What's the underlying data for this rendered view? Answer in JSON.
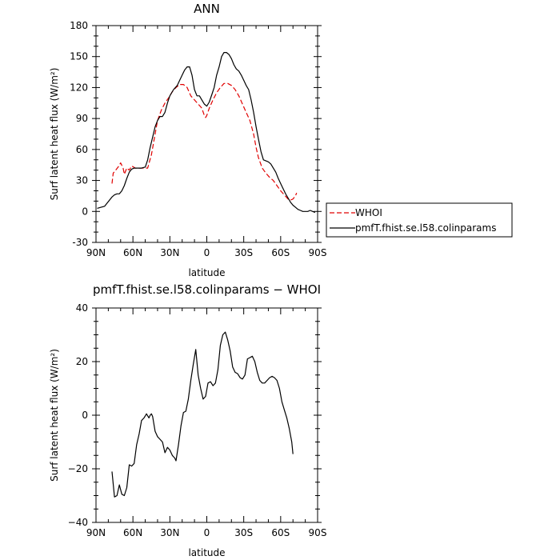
{
  "chart_data": [
    {
      "type": "line",
      "title": "ANN",
      "xlabel": "latitude",
      "ylabel": "Surf latent heat flux (W/m²)",
      "xlim": [
        90,
        -90
      ],
      "ylim": [
        -30,
        180
      ],
      "x_ticks": [
        90,
        60,
        30,
        0,
        -30,
        -60,
        -90
      ],
      "x_tick_labels": [
        "90N",
        "60N",
        "30N",
        "0",
        "30S",
        "60S",
        "90S"
      ],
      "y_ticks": [
        -30,
        0,
        30,
        60,
        90,
        120,
        150,
        180
      ],
      "y_tick_labels": [
        "-30",
        "0",
        "30",
        "60",
        "90",
        "120",
        "150",
        "180"
      ],
      "legend_position": "right",
      "series": [
        {
          "name": "WHOI",
          "color": "#e00000",
          "dash": "dashed",
          "points": [
            [
              77,
              27
            ],
            [
              76,
              37
            ],
            [
              74,
              40
            ],
            [
              72,
              43
            ],
            [
              70,
              47
            ],
            [
              68,
              42
            ],
            [
              67,
              36
            ],
            [
              65,
              42
            ],
            [
              63,
              40
            ],
            [
              61,
              44
            ],
            [
              58,
              42
            ],
            [
              55,
              42
            ],
            [
              52,
              42
            ],
            [
              48,
              42
            ],
            [
              45,
              55
            ],
            [
              42,
              75
            ],
            [
              40,
              88
            ],
            [
              37,
              98
            ],
            [
              34,
              105
            ],
            [
              31,
              110
            ],
            [
              28,
              116
            ],
            [
              25,
              120
            ],
            [
              22,
              123
            ],
            [
              19,
              123
            ],
            [
              16,
              120
            ],
            [
              13,
              112
            ],
            [
              10,
              108
            ],
            [
              7,
              104
            ],
            [
              4,
              100
            ],
            [
              2,
              93
            ],
            [
              1,
              91
            ],
            [
              0,
              93
            ],
            [
              -2,
              100
            ],
            [
              -5,
              108
            ],
            [
              -8,
              115
            ],
            [
              -11,
              120
            ],
            [
              -14,
              124
            ],
            [
              -17,
              124
            ],
            [
              -20,
              122
            ],
            [
              -23,
              118
            ],
            [
              -26,
              112
            ],
            [
              -29,
              104
            ],
            [
              -32,
              96
            ],
            [
              -35,
              88
            ],
            [
              -38,
              75
            ],
            [
              -40,
              62
            ],
            [
              -42,
              52
            ],
            [
              -45,
              42
            ],
            [
              -48,
              37
            ],
            [
              -51,
              33
            ],
            [
              -54,
              30
            ],
            [
              -57,
              25
            ],
            [
              -60,
              20
            ],
            [
              -63,
              16
            ],
            [
              -66,
              12
            ],
            [
              -68,
              11
            ],
            [
              -70,
              12
            ],
            [
              -72,
              15
            ],
            [
              -73,
              18
            ]
          ]
        },
        {
          "name": "pmfT.fhist.se.l58.colinparams",
          "color": "#000000",
          "dash": "solid",
          "points": [
            [
              89,
              3
            ],
            [
              86,
              4
            ],
            [
              83,
              5
            ],
            [
              81,
              8
            ],
            [
              79,
              11
            ],
            [
              77,
              14
            ],
            [
              75,
              16
            ],
            [
              73,
              17
            ],
            [
              71,
              17
            ],
            [
              69,
              20
            ],
            [
              67,
              25
            ],
            [
              65,
              32
            ],
            [
              63,
              38
            ],
            [
              61,
              41
            ],
            [
              59,
              42
            ],
            [
              56,
              42
            ],
            [
              53,
              42
            ],
            [
              50,
              43
            ],
            [
              48,
              50
            ],
            [
              46,
              62
            ],
            [
              44,
              72
            ],
            [
              42,
              82
            ],
            [
              40,
              88
            ],
            [
              38,
              92
            ],
            [
              36,
              92
            ],
            [
              34,
              96
            ],
            [
              32,
              105
            ],
            [
              30,
              112
            ],
            [
              27,
              118
            ],
            [
              24,
              122
            ],
            [
              22,
              127
            ],
            [
              20,
              132
            ],
            [
              18,
              137
            ],
            [
              16,
              140
            ],
            [
              14,
              140
            ],
            [
              12,
              132
            ],
            [
              10,
              118
            ],
            [
              8,
              112
            ],
            [
              6,
              112
            ],
            [
              4,
              108
            ],
            [
              2,
              104
            ],
            [
              1,
              103
            ],
            [
              0,
              102
            ],
            [
              -2,
              106
            ],
            [
              -4,
              113
            ],
            [
              -6,
              120
            ],
            [
              -8,
              132
            ],
            [
              -10,
              140
            ],
            [
              -12,
              150
            ],
            [
              -14,
              154
            ],
            [
              -16,
              154
            ],
            [
              -18,
              152
            ],
            [
              -20,
              148
            ],
            [
              -22,
              142
            ],
            [
              -24,
              138
            ],
            [
              -26,
              136
            ],
            [
              -28,
              132
            ],
            [
              -30,
              127
            ],
            [
              -32,
              122
            ],
            [
              -34,
              118
            ],
            [
              -36,
              108
            ],
            [
              -38,
              96
            ],
            [
              -40,
              82
            ],
            [
              -42,
              70
            ],
            [
              -44,
              58
            ],
            [
              -46,
              50
            ],
            [
              -48,
              49
            ],
            [
              -50,
              48
            ],
            [
              -52,
              46
            ],
            [
              -54,
              42
            ],
            [
              -56,
              38
            ],
            [
              -58,
              32
            ],
            [
              -60,
              27
            ],
            [
              -62,
              22
            ],
            [
              -64,
              17
            ],
            [
              -66,
              13
            ],
            [
              -68,
              9
            ],
            [
              -70,
              6
            ],
            [
              -72,
              4
            ],
            [
              -74,
              2
            ],
            [
              -76,
              1
            ],
            [
              -78,
              0
            ],
            [
              -80,
              0
            ],
            [
              -82,
              0
            ],
            [
              -84,
              1
            ],
            [
              -86,
              0
            ],
            [
              -88,
              -1
            ]
          ]
        }
      ]
    },
    {
      "type": "line",
      "title": "pmfT.fhist.se.l58.colinparams − WHOI",
      "xlabel": "latitude",
      "ylabel": "Surf latent heat flux (W/m²)",
      "xlim": [
        90,
        -90
      ],
      "ylim": [
        -40,
        40
      ],
      "x_ticks": [
        90,
        60,
        30,
        0,
        -30,
        -60,
        -90
      ],
      "x_tick_labels": [
        "90N",
        "60N",
        "30N",
        "0",
        "30S",
        "60S",
        "90S"
      ],
      "y_ticks": [
        -40,
        -20,
        0,
        20,
        40
      ],
      "y_tick_labels": [
        "−40",
        "−20",
        "0",
        "20",
        "40"
      ],
      "series": [
        {
          "color": "#000000",
          "dash": "solid",
          "points": [
            [
              77,
              -21
            ],
            [
              75,
              -30.5
            ],
            [
              73,
              -30
            ],
            [
              71,
              -26
            ],
            [
              69,
              -29.5
            ],
            [
              67,
              -30
            ],
            [
              65,
              -27
            ],
            [
              63,
              -18.5
            ],
            [
              61,
              -19
            ],
            [
              59,
              -18
            ],
            [
              57,
              -11
            ],
            [
              55,
              -7
            ],
            [
              53,
              -2
            ],
            [
              51,
              -1
            ],
            [
              49,
              0.5
            ],
            [
              47,
              -1
            ],
            [
              46,
              0
            ],
            [
              45,
              0.5
            ],
            [
              44,
              -0.5
            ],
            [
              42,
              -6
            ],
            [
              40,
              -8
            ],
            [
              38,
              -9
            ],
            [
              36,
              -10
            ],
            [
              34,
              -14
            ],
            [
              32,
              -12
            ],
            [
              30,
              -13
            ],
            [
              28,
              -15
            ],
            [
              26,
              -16
            ],
            [
              25,
              -17
            ],
            [
              23,
              -11
            ],
            [
              21,
              -4
            ],
            [
              19,
              1
            ],
            [
              17,
              1.5
            ],
            [
              15,
              6
            ],
            [
              13,
              13
            ],
            [
              11,
              19
            ],
            [
              9,
              24.5
            ],
            [
              7,
              15
            ],
            [
              5,
              10
            ],
            [
              3,
              6
            ],
            [
              1,
              7
            ],
            [
              -1,
              12
            ],
            [
              -3,
              12.5
            ],
            [
              -5,
              11
            ],
            [
              -7,
              12
            ],
            [
              -9,
              17
            ],
            [
              -11,
              26
            ],
            [
              -13,
              30
            ],
            [
              -15,
              31
            ],
            [
              -17,
              28
            ],
            [
              -19,
              24
            ],
            [
              -21,
              18
            ],
            [
              -23,
              16
            ],
            [
              -25,
              15.5
            ],
            [
              -27,
              14
            ],
            [
              -29,
              13.5
            ],
            [
              -31,
              15
            ],
            [
              -33,
              21
            ],
            [
              -35,
              21.5
            ],
            [
              -37,
              22
            ],
            [
              -39,
              20
            ],
            [
              -41,
              16
            ],
            [
              -43,
              13
            ],
            [
              -45,
              12
            ],
            [
              -47,
              12
            ],
            [
              -49,
              13
            ],
            [
              -51,
              14
            ],
            [
              -53,
              14.5
            ],
            [
              -55,
              14
            ],
            [
              -57,
              13
            ],
            [
              -59,
              10
            ],
            [
              -61,
              5
            ],
            [
              -63,
              2
            ],
            [
              -65,
              -1
            ],
            [
              -67,
              -5
            ],
            [
              -69,
              -10
            ],
            [
              -70,
              -14.5
            ]
          ]
        }
      ]
    }
  ]
}
